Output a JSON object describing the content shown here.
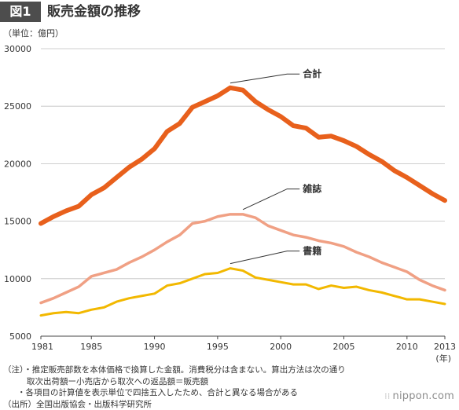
{
  "header": {
    "figure_label": "図1",
    "title": "販売金額の推移"
  },
  "unit_label": "（単位：億円）",
  "chart_data": {
    "type": "line",
    "title": "販売金額の推移",
    "xlabel": "",
    "ylabel": "",
    "x_unit_label": "(年)",
    "xlim": [
      1981,
      2013
    ],
    "ylim": [
      5000,
      30000
    ],
    "x_ticks": [
      1981,
      1985,
      1990,
      1995,
      2000,
      2005,
      2010,
      2013
    ],
    "y_ticks": [
      5000,
      10000,
      15000,
      20000,
      25000,
      30000
    ],
    "grid": "horizontal",
    "x": [
      1981,
      1982,
      1983,
      1984,
      1985,
      1986,
      1987,
      1988,
      1989,
      1990,
      1991,
      1992,
      1993,
      1994,
      1995,
      1996,
      1997,
      1998,
      1999,
      2000,
      2001,
      2002,
      2003,
      2004,
      2005,
      2006,
      2007,
      2008,
      2009,
      2010,
      2011,
      2012,
      2013
    ],
    "series": [
      {
        "name": "合計",
        "color": "#e8601c",
        "values": [
          14800,
          15400,
          15900,
          16300,
          17300,
          17900,
          18800,
          19700,
          20400,
          21300,
          22800,
          23500,
          24900,
          25400,
          25900,
          26600,
          26400,
          25400,
          24700,
          24100,
          23300,
          23100,
          22300,
          22400,
          22000,
          21500,
          20800,
          20200,
          19400,
          18800,
          18100,
          17400,
          16800
        ]
      },
      {
        "name": "雑誌",
        "color": "#f0a084",
        "values": [
          7900,
          8300,
          8800,
          9300,
          10200,
          10500,
          10800,
          11400,
          11900,
          12500,
          13200,
          13800,
          14800,
          15000,
          15400,
          15600,
          15600,
          15300,
          14600,
          14200,
          13800,
          13600,
          13300,
          13100,
          12800,
          12300,
          11900,
          11400,
          11000,
          10600,
          9900,
          9400,
          9000
        ]
      },
      {
        "name": "書籍",
        "color": "#f2b800",
        "values": [
          6800,
          7000,
          7100,
          7000,
          7300,
          7500,
          8000,
          8300,
          8500,
          8700,
          9400,
          9600,
          10000,
          10400,
          10500,
          10900,
          10700,
          10100,
          9900,
          9700,
          9500,
          9500,
          9100,
          9400,
          9200,
          9300,
          9000,
          8800,
          8500,
          8200,
          8200,
          8000,
          7800
        ]
      }
    ],
    "series_labels": [
      {
        "text": "合計",
        "series": 0,
        "anchor_year": 1996,
        "label_year": 2001,
        "label_value": 27800
      },
      {
        "text": "雑誌",
        "series": 1,
        "anchor_year": 1997,
        "label_year": 2001,
        "label_value": 17800
      },
      {
        "text": "書籍",
        "series": 2,
        "anchor_year": 1996,
        "label_year": 2001,
        "label_value": 12400
      }
    ]
  },
  "notes": {
    "line1": "（注）・推定販売部数を本体価格で換算した金額。消費税分は含まない。算出方法は次の通り",
    "line2": "取次出荷額ー小売店から取次への返品額＝販売額",
    "line3": "・各項目の計算値を表示単位で四捨五入したため、合計と異なる場合がある",
    "line4": "（出所）全国出版協会・出版科学研究所"
  },
  "credit": "nippon.com"
}
